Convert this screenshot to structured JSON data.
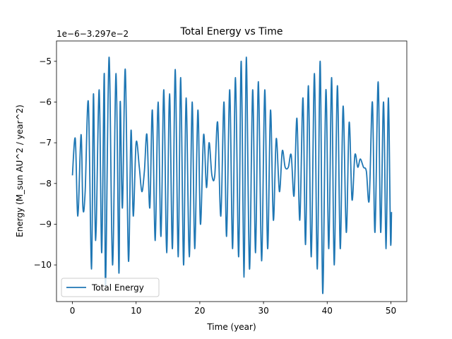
{
  "chart_data": {
    "type": "line",
    "title": "Total Energy vs Time",
    "xlabel": "Time (year)",
    "ylabel": "Energy (M_sun AU^2 / year^2)",
    "offset_label": "1e−6−3.297e−2",
    "xlim": [
      -2.5,
      52.5
    ],
    "ylim": [
      -10.9,
      -4.5
    ],
    "x_ticks": [
      0,
      10,
      20,
      30,
      40,
      50
    ],
    "x_tick_labels": [
      "0",
      "10",
      "20",
      "30",
      "40",
      "50"
    ],
    "y_ticks": [
      -10,
      -9,
      -8,
      -7,
      -6,
      -5
    ],
    "y_tick_labels": [
      "−10",
      "−9",
      "−8",
      "−7",
      "−6",
      "−5"
    ],
    "grid": false,
    "legend_position": "lower-left",
    "series": [
      {
        "name": "Total Energy",
        "color": "#1f77b4",
        "x": [
          0.0,
          0.45,
          0.85,
          1.35,
          1.65,
          2.0,
          2.5,
          3.0,
          3.3,
          3.65,
          4.2,
          4.6,
          5.0,
          5.2,
          5.75,
          6.3,
          6.85,
          7.3,
          7.5,
          7.85,
          8.3,
          8.8,
          9.2,
          9.55,
          10.0,
          10.5,
          10.9,
          11.3,
          11.7,
          12.15,
          12.55,
          13.0,
          13.45,
          13.9,
          14.35,
          14.8,
          15.25,
          15.7,
          16.15,
          16.6,
          17.0,
          17.45,
          17.85,
          18.35,
          18.8,
          19.2,
          19.7,
          20.1,
          20.6,
          21.05,
          21.45,
          21.9,
          22.35,
          22.8,
          23.3,
          23.8,
          24.2,
          24.7,
          25.15,
          25.6,
          26.1,
          26.5,
          26.95,
          27.3,
          27.8,
          28.3,
          28.75,
          29.2,
          29.7,
          30.2,
          30.65,
          31.1,
          31.55,
          32.0,
          32.5,
          32.95,
          33.4,
          33.9,
          34.35,
          34.8,
          35.25,
          35.7,
          36.2,
          36.6,
          37.05,
          37.5,
          38.0,
          38.45,
          38.9,
          39.3,
          39.8,
          40.25,
          40.7,
          41.1,
          41.6,
          42.05,
          42.5,
          43.0,
          43.45,
          43.9,
          44.35,
          44.8,
          45.2,
          45.7,
          46.15,
          46.6,
          47.1,
          47.5,
          48.0,
          48.4,
          48.85,
          49.25,
          49.6,
          49.95,
          50.1
        ],
        "y": [
          -7.8,
          -6.9,
          -8.8,
          -6.8,
          -8.6,
          -8.2,
          -6.0,
          -10.1,
          -5.8,
          -9.4,
          -5.7,
          -9.7,
          -5.3,
          -10.5,
          -4.9,
          -10.0,
          -5.3,
          -10.2,
          -6.0,
          -8.6,
          -5.2,
          -9.9,
          -6.7,
          -8.8,
          -7.0,
          -7.6,
          -8.2,
          -7.7,
          -6.8,
          -8.6,
          -6.2,
          -9.4,
          -6.0,
          -9.3,
          -5.7,
          -9.7,
          -5.8,
          -9.6,
          -5.2,
          -9.8,
          -5.4,
          -10.0,
          -5.9,
          -9.8,
          -6.0,
          -9.6,
          -6.2,
          -9.0,
          -6.8,
          -8.1,
          -7.0,
          -7.8,
          -7.8,
          -6.5,
          -8.8,
          -6.0,
          -9.3,
          -5.7,
          -9.6,
          -5.4,
          -9.8,
          -5.0,
          -10.3,
          -4.9,
          -10.1,
          -5.7,
          -9.7,
          -5.5,
          -9.9,
          -5.7,
          -9.6,
          -6.2,
          -8.9,
          -6.9,
          -8.2,
          -7.2,
          -7.6,
          -7.6,
          -7.3,
          -8.3,
          -6.4,
          -8.9,
          -5.9,
          -9.5,
          -5.6,
          -9.8,
          -5.3,
          -10.1,
          -5.0,
          -10.7,
          -5.7,
          -9.6,
          -5.4,
          -10.0,
          -5.6,
          -9.6,
          -6.1,
          -9.2,
          -6.5,
          -8.4,
          -7.3,
          -7.6,
          -7.4,
          -7.6,
          -7.7,
          -8.4,
          -6.0,
          -9.2,
          -5.5,
          -9.2,
          -6.0,
          -9.6,
          -5.9,
          -9.4,
          -8.7
        ]
      }
    ]
  }
}
